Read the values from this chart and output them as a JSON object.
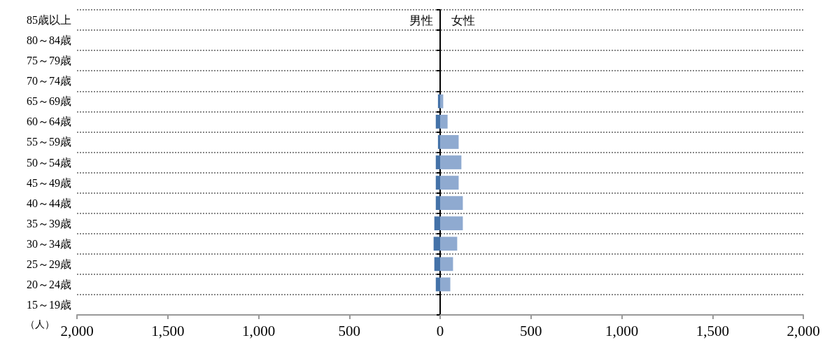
{
  "chart_data": {
    "type": "bar",
    "orientation": "horizontal",
    "xlabel": "（人）",
    "categories": [
      "85歳以上",
      "80～84歳",
      "75～79歳",
      "70～74歳",
      "65～69歳",
      "60～64歳",
      "55～59歳",
      "50～54歳",
      "45～49歳",
      "40～44歳",
      "35～39歳",
      "30～34歳",
      "25～29歳",
      "20～24歳",
      "15～19歳"
    ],
    "series": [
      {
        "name": "男性",
        "color": "#4472a8",
        "values": [
          0,
          0,
          0,
          0,
          -12,
          -24,
          -12,
          -24,
          -24,
          -24,
          -32,
          -36,
          -32,
          -24,
          0
        ]
      },
      {
        "name": "女性",
        "color": "#8faad0",
        "values": [
          0,
          0,
          0,
          0,
          17,
          41,
          102,
          117,
          102,
          125,
          125,
          94,
          71,
          56,
          0
        ]
      }
    ],
    "xlim": [
      -2000,
      2000
    ],
    "xticks": [
      {
        "value": -2000,
        "label": "2,000"
      },
      {
        "value": -1500,
        "label": "1,500"
      },
      {
        "value": -1000,
        "label": "1,000"
      },
      {
        "value": -500,
        "label": "500"
      },
      0,
      500,
      {
        "value": 1000,
        "label": "1,000"
      },
      {
        "value": 1500,
        "label": "1,500"
      },
      {
        "value": 2000,
        "label": "2,000"
      }
    ],
    "stacked": true,
    "grid": "y",
    "legend": false
  }
}
